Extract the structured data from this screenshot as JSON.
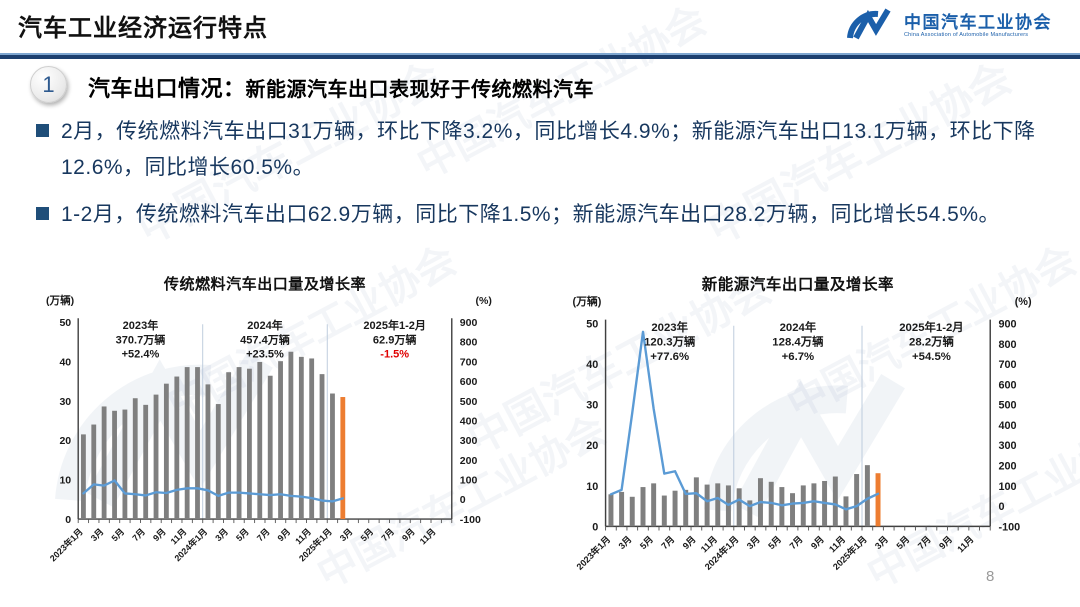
{
  "page": {
    "title": "汽车工业经济运行特点",
    "page_number": "8",
    "logo": {
      "zh": "中国汽车工业协会",
      "en": "China Association of Automobile Manufacturers"
    },
    "watermark_text": "中国汽车工业协会"
  },
  "section": {
    "number": "1",
    "heading": "汽车出口情况：",
    "subheading": "新能源汽车出口表现好于传统燃料汽车",
    "bullets": [
      "2月，传统燃料汽车出口31万辆，环比下降3.2%，同比增长4.9%；新能源汽车出口13.1万辆，环比下降12.6%，同比增长60.5%。",
      "1-2月，传统燃料汽车出口62.9万辆，同比下降1.5%；新能源汽车出口28.2万辆，同比增长54.5%。"
    ]
  },
  "colors": {
    "logo_blue": "#1B5FAA",
    "navy_text": "#17375E",
    "bar_gray": "#7F7F7F",
    "bar_orange": "#ED7D31",
    "line_blue": "#5B9BD5",
    "negative_red": "#E00000"
  },
  "chart_data": [
    {
      "type": "bar+line",
      "title": "传统燃料汽车出口量及增长率",
      "left_axis": {
        "label": "(万辆)",
        "min": 0,
        "max": 50,
        "ticks": [
          0,
          10,
          20,
          30,
          40,
          50
        ]
      },
      "right_axis": {
        "label": "(%)",
        "min": -100,
        "max": 900,
        "ticks": [
          900,
          800,
          700,
          600,
          500,
          400,
          300,
          200,
          100,
          0,
          -100
        ]
      },
      "months_total": 36,
      "x_labels": [
        "2023年1月",
        "3月",
        "5月",
        "7月",
        "9月",
        "11月",
        "2024年1月",
        "3月",
        "5月",
        "7月",
        "9月",
        "11月",
        "2025年1月",
        "3月",
        "5月",
        "7月",
        "9月",
        "11月"
      ],
      "bars": {
        "color": "#7F7F7F",
        "last_color": "#ED7D31",
        "values": [
          21.5,
          24,
          28.6,
          27.5,
          27.8,
          30.7,
          29,
          31.6,
          34.4,
          36.2,
          38.6,
          38.6,
          34.2,
          29.2,
          37.3,
          38.6,
          38.2,
          39.9,
          36.4,
          40.1,
          42.5,
          41.2,
          40.8,
          36.8,
          31.9,
          31
        ]
      },
      "line": {
        "color": "#5B9BD5",
        "values": [
          30,
          76,
          70,
          96,
          30,
          26,
          20,
          36,
          32,
          48,
          56,
          56,
          46,
          18,
          34,
          34,
          30,
          26,
          22,
          26,
          18,
          14,
          6,
          -6,
          -10,
          4.9
        ]
      },
      "annotations": [
        {
          "lines": [
            "2023年",
            "370.7万辆",
            "+52.4%"
          ],
          "highlight_last": false
        },
        {
          "lines": [
            "2024年",
            "457.4万辆",
            "+23.5%"
          ],
          "highlight_last": false
        },
        {
          "lines": [
            "2025年1-2月",
            "62.9万辆",
            "-1.5%"
          ],
          "highlight_last": true
        }
      ]
    },
    {
      "type": "bar+line",
      "title": "新能源汽车出口量及增长率",
      "left_axis": {
        "label": "(万辆)",
        "min": 0,
        "max": 50,
        "ticks": [
          0,
          10,
          20,
          30,
          40,
          50
        ]
      },
      "right_axis": {
        "label": "(%)",
        "min": -100,
        "max": 900,
        "ticks": [
          900,
          800,
          700,
          600,
          500,
          400,
          300,
          200,
          100,
          0,
          -100
        ]
      },
      "months_total": 36,
      "x_labels": [
        "2023年1月",
        "3月",
        "5月",
        "7月",
        "9月",
        "11月",
        "2024年1月",
        "3月",
        "5月",
        "7月",
        "9月",
        "11月",
        "2025年1月",
        "3月",
        "5月",
        "7月",
        "9月",
        "11月"
      ],
      "bars": {
        "color": "#7F7F7F",
        "last_color": "#ED7D31",
        "values": [
          7.9,
          8.5,
          7.3,
          9.7,
          10.6,
          7.6,
          8.8,
          9,
          12.1,
          10.3,
          10.6,
          10.1,
          9.4,
          6.4,
          11.9,
          11,
          9.7,
          8.2,
          10.1,
          10.6,
          11.2,
          12.3,
          7.4,
          12.9,
          15.1,
          13.1
        ]
      },
      "line": {
        "color": "#5B9BD5",
        "values": [
          58,
          80,
          460,
          860,
          480,
          160,
          172,
          60,
          64,
          24,
          40,
          6,
          32,
          0,
          20,
          16,
          4,
          12,
          16,
          24,
          16,
          8,
          -16,
          0,
          36,
          60.5
        ]
      },
      "annotations": [
        {
          "lines": [
            "2023年",
            "120.3万辆",
            "+77.6%"
          ],
          "highlight_last": false
        },
        {
          "lines": [
            "2024年",
            "128.4万辆",
            "+6.7%"
          ],
          "highlight_last": false
        },
        {
          "lines": [
            "2025年1-2月",
            "28.2万辆",
            "+54.5%"
          ],
          "highlight_last": false
        }
      ]
    }
  ]
}
